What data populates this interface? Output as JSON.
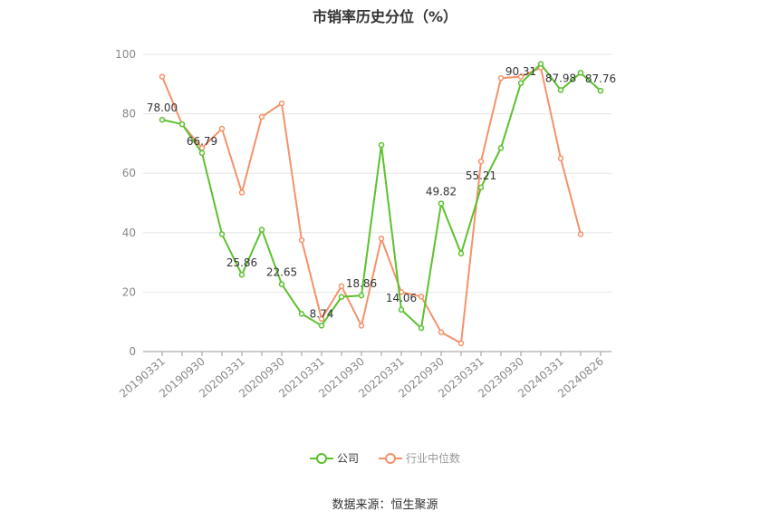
{
  "chart_data": {
    "type": "line",
    "title": "市销率历史分位（%）",
    "ylim": [
      0,
      100
    ],
    "yticks": [
      0,
      20,
      40,
      60,
      80,
      100
    ],
    "grid": true,
    "legend_position": "bottom",
    "x": [
      "20190331",
      "20190630",
      "20190930",
      "20191231",
      "20200331",
      "20200630",
      "20200930",
      "20201231",
      "20210331",
      "20210630",
      "20210930",
      "20211231",
      "20220331",
      "20220630",
      "20220930",
      "20221231",
      "20230331",
      "20230630",
      "20230930",
      "20231231",
      "20240331",
      "20240630",
      "20240826"
    ],
    "xtick_labels": [
      "20190331",
      "20190930",
      "20200331",
      "20200930",
      "20210331",
      "20210930",
      "20220331",
      "20220930",
      "20230331",
      "20230930",
      "20240331",
      "20240826"
    ],
    "series": [
      {
        "name": "公司",
        "color": "#5cc12e",
        "values": [
          78.0,
          76.5,
          66.79,
          39.5,
          25.86,
          41,
          22.65,
          12.7,
          8.74,
          18.4,
          18.86,
          69.5,
          14.06,
          7.9,
          49.82,
          33,
          55.21,
          68.5,
          90.31,
          96.8,
          87.98,
          93.8,
          87.76
        ],
        "labels": {
          "0": "78.00",
          "2": "66.79",
          "4": "25.86",
          "6": "22.65",
          "8": "8.74",
          "10": "18.86",
          "12": "14.06",
          "14": "49.82",
          "16": "55.21",
          "18": "90.31",
          "20": "87.98",
          "22": "87.76"
        }
      },
      {
        "name": "行业中位数",
        "color": "#f5926a",
        "values": [
          92.5,
          76.5,
          68.5,
          75,
          53.5,
          79,
          83.5,
          37.5,
          11,
          22,
          8.7,
          38,
          20,
          18.5,
          6.5,
          2.8,
          64,
          92,
          92.5,
          95.5,
          65,
          39.5,
          null
        ]
      }
    ]
  },
  "footer": {
    "source": "数据来源：恒生聚源"
  }
}
